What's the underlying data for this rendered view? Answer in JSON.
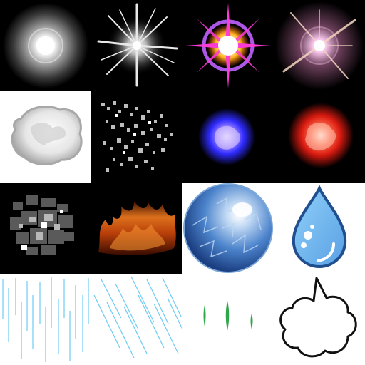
{
  "atlas": {
    "columns": 4,
    "rows": 4,
    "tiles": [
      {
        "id": "glow-soft",
        "background": "#000000"
      },
      {
        "id": "burst-spiky",
        "background": "#000000"
      },
      {
        "id": "flare-magenta",
        "background": "#000000",
        "accent": "#ff2fd0"
      },
      {
        "id": "flare-rays",
        "background": "#000000",
        "accent": "#f5c8e8"
      },
      {
        "id": "cloud-blob",
        "background": "#ffffff"
      },
      {
        "id": "dust-pixel",
        "background": "#000000"
      },
      {
        "id": "plasma-blue",
        "background": "#000000",
        "accent": "#3a3cff"
      },
      {
        "id": "plasma-red",
        "background": "#000000",
        "accent": "#ff2a10"
      },
      {
        "id": "smoke-pixel",
        "background": "#000000"
      },
      {
        "id": "fire",
        "background": "#000000",
        "accent": "#d4550c"
      },
      {
        "id": "ice-ball",
        "background": "#ffffff",
        "accent": "#3f78c8"
      },
      {
        "id": "water-drop",
        "background": "#ffffff",
        "accent": "#6fb4ef"
      },
      {
        "id": "rain-straight",
        "background": "#ffffff",
        "accent": "#7fd3f5"
      },
      {
        "id": "rain-slanted",
        "background": "#ffffff",
        "accent": "#7fd3f5"
      },
      {
        "id": "grass-blades",
        "background": "#ffffff",
        "accent": "#2ea84a"
      },
      {
        "id": "speech-cloud",
        "background": "#ffffff",
        "accent": "#111111"
      }
    ]
  }
}
